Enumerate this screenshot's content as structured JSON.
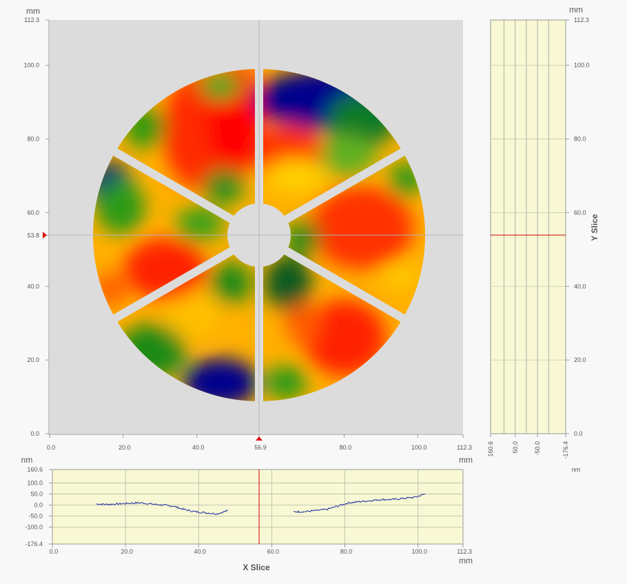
{
  "main_map": {
    "unit_top": "mm",
    "unit_bottom": "mm",
    "y_ticks": [
      "112.3",
      "100.0",
      "80.0",
      "60.0",
      "53.8",
      "40.0",
      "20.0",
      "0.0"
    ],
    "x_ticks": [
      "0.0",
      "20.0",
      "40.0",
      "56.9",
      "80.0",
      "100.0",
      "112.3"
    ],
    "crosshair_x": "56.9",
    "crosshair_y": "53.8",
    "colors": {
      "background": "#dcdcdc",
      "crosshair": "#b4b4b4",
      "marker": "#dd1111",
      "colormap_high": "#ff0000",
      "colormap_mid": "#ffcc00",
      "colormap_low": "#0000a0"
    }
  },
  "y_slice": {
    "title": "Y Slice",
    "unit_top": "mm",
    "unit_bottom": "nm",
    "y_ticks": [
      "112.3",
      "100.0",
      "80.0",
      "60.0",
      "40.0",
      "20.0",
      "0.0"
    ],
    "x_ticks": [
      "160.6",
      "50.0",
      "-50.0",
      "-176.4"
    ],
    "colors": {
      "panel": "#f8f8d4",
      "cursor": "#cc0000"
    }
  },
  "x_slice": {
    "title": "X Slice",
    "unit_top": "nm",
    "unit_bottom": "mm",
    "y_ticks": [
      "160.6",
      "100.0",
      "50.0",
      "0.0",
      "-50.0",
      "-100.0",
      "-176.4"
    ],
    "x_ticks": [
      "0.0",
      "20.0",
      "40.0",
      "60.0",
      "80.0",
      "100.0",
      "112.3"
    ],
    "colors": {
      "panel": "#f8f8d4",
      "cursor": "#cc0000",
      "profile": "#1a2aa0"
    }
  },
  "chart_data": {
    "type": "line",
    "title": "X Slice",
    "xlabel": "mm",
    "ylabel": "nm",
    "xlim": [
      0,
      112.3
    ],
    "ylim": [
      -176.4,
      160.6
    ],
    "series": [
      {
        "x": [
          12,
          15,
          18,
          21,
          24,
          27,
          30,
          33,
          36,
          39,
          42,
          45,
          48
        ],
        "y": [
          5,
          3,
          5,
          8,
          10,
          5,
          0,
          -5,
          -20,
          -30,
          -35,
          -40,
          -25
        ]
      },
      {
        "x": [
          66,
          69,
          72,
          75,
          78,
          81,
          84,
          87,
          90,
          93,
          96,
          99,
          102
        ],
        "y": [
          -30,
          -30,
          -25,
          -20,
          -5,
          10,
          15,
          20,
          25,
          25,
          30,
          35,
          50
        ]
      }
    ]
  }
}
